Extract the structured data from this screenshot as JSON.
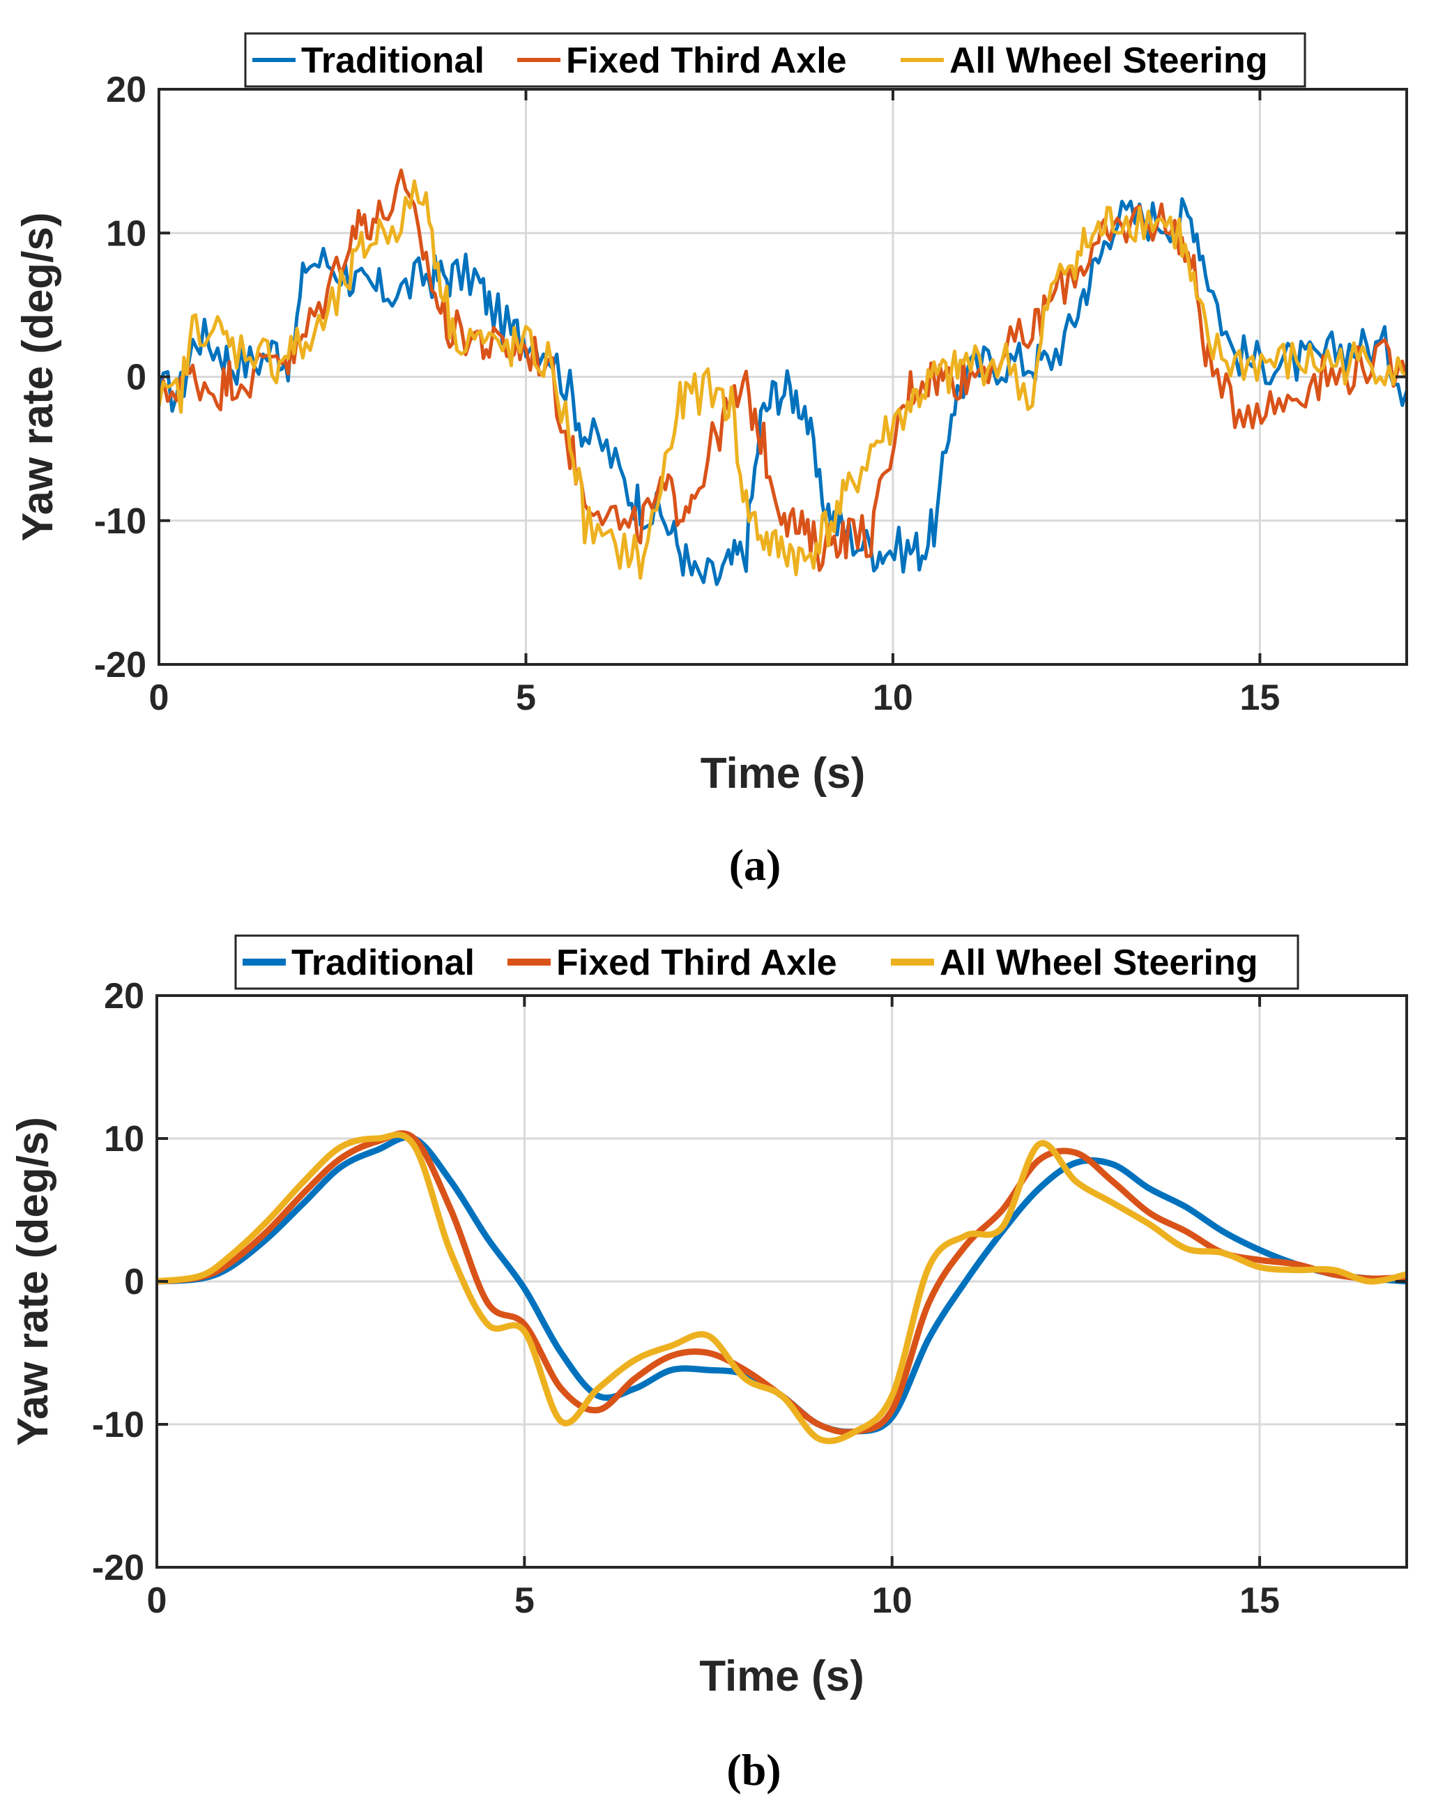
{
  "chart_data": [
    {
      "type": "line",
      "panel": "a",
      "caption": "(a)",
      "xlabel": "Time (s)",
      "ylabel": "Yaw rate (deg/s)",
      "xlim": [
        0,
        17
      ],
      "ylim": [
        -20,
        20
      ],
      "xticks": [
        0,
        5,
        10,
        15
      ],
      "yticks": [
        -20,
        -10,
        0,
        10,
        20
      ],
      "xtick_labels": [
        "0",
        "5",
        "10",
        "15"
      ],
      "ytick_labels": [
        "-20",
        "-10",
        "0",
        "10",
        "20"
      ],
      "grid": true,
      "legend_position": "top, above plot",
      "noisy": true,
      "series": [
        {
          "name": "Traditional",
          "color": "#0072BD",
          "x": [
            0,
            0.3,
            0.5,
            0.8,
            1.0,
            1.3,
            1.6,
            1.8,
            2.0,
            2.3,
            2.6,
            2.8,
            3.0,
            3.3,
            3.6,
            3.8,
            4.0,
            4.3,
            4.5,
            4.8,
            5.0,
            5.3,
            5.6,
            5.8,
            6.1,
            6.4,
            6.6,
            6.9,
            7.1,
            7.3,
            7.6,
            7.8,
            8.0,
            8.2,
            8.4,
            8.6,
            8.8,
            9.0,
            9.2,
            9.4,
            9.7,
            9.9,
            10.2,
            10.4,
            10.6,
            10.8,
            11.0,
            11.3,
            11.6,
            11.9,
            12.1,
            12.4,
            12.6,
            12.8,
            13.0,
            13.3,
            13.6,
            13.9,
            14.1,
            14.3,
            14.6,
            14.9,
            15.2,
            15.5,
            15.8,
            16.1,
            16.4,
            16.7,
            17.0
          ],
          "y": [
            -1,
            -1,
            3,
            2,
            1,
            1,
            2,
            1,
            8,
            8,
            7,
            6,
            6,
            6,
            7,
            7,
            7,
            7,
            5,
            3,
            3,
            2,
            -1,
            -4,
            -5,
            -8,
            -9,
            -10,
            -12,
            -14,
            -14,
            -13,
            -12,
            -3,
            -1,
            -1,
            -2,
            -8,
            -10,
            -11,
            -12,
            -12,
            -12,
            -12,
            -10,
            -2,
            0,
            1,
            1,
            1,
            1,
            3,
            6,
            8,
            11,
            11,
            11,
            11,
            11,
            7,
            2,
            1,
            1,
            1,
            1,
            2,
            2,
            2,
            -1
          ]
        },
        {
          "name": "Fixed Third Axle",
          "color": "#D95319",
          "x": [
            0,
            0.3,
            0.5,
            0.8,
            1.0,
            1.3,
            1.6,
            1.8,
            2.0,
            2.3,
            2.6,
            2.8,
            3.0,
            3.3,
            3.6,
            3.8,
            4.0,
            4.3,
            4.5,
            4.8,
            5.0,
            5.3,
            5.6,
            5.8,
            6.1,
            6.4,
            6.6,
            6.9,
            7.1,
            7.3,
            7.6,
            7.8,
            8.0,
            8.2,
            8.4,
            8.6,
            8.8,
            9.0,
            9.2,
            9.4,
            9.7,
            9.9,
            10.2,
            10.4,
            10.6,
            10.8,
            11.0,
            11.3,
            11.6,
            11.9,
            12.1,
            12.4,
            12.6,
            12.8,
            13.0,
            13.3,
            13.6,
            13.9,
            14.1,
            14.3,
            14.6,
            14.9,
            15.2,
            15.5,
            15.8,
            16.1,
            16.4,
            16.7,
            17.0
          ],
          "y": [
            -2,
            0,
            0,
            -1,
            0,
            0,
            2,
            1,
            3,
            6,
            10,
            11,
            11,
            13,
            9,
            5,
            3,
            3,
            2,
            2,
            2,
            1,
            -5,
            -8,
            -9,
            -11,
            -10,
            -8,
            -9,
            -8,
            -4,
            -2,
            -1,
            -4,
            -8,
            -10,
            -11,
            -12,
            -11,
            -11,
            -11,
            -7,
            -1,
            0,
            0,
            0,
            0,
            1,
            2,
            3,
            5,
            7,
            8,
            9,
            10,
            11,
            11,
            10,
            7,
            1,
            -2,
            -2,
            -2,
            -1,
            0,
            0,
            1,
            1,
            0
          ]
        },
        {
          "name": "All Wheel Steering",
          "color": "#EDB120",
          "x": [
            0,
            0.3,
            0.5,
            0.8,
            1.0,
            1.3,
            1.6,
            1.8,
            2.0,
            2.3,
            2.6,
            2.8,
            3.0,
            3.3,
            3.6,
            3.8,
            4.0,
            4.3,
            4.5,
            4.8,
            5.0,
            5.3,
            5.6,
            5.8,
            6.1,
            6.4,
            6.6,
            6.9,
            7.1,
            7.3,
            7.6,
            7.8,
            8.0,
            8.2,
            8.4,
            8.6,
            8.8,
            9.0,
            9.2,
            9.4,
            9.7,
            9.9,
            10.2,
            10.4,
            10.6,
            10.8,
            11.0,
            11.3,
            11.6,
            11.9,
            12.1,
            12.4,
            12.6,
            12.8,
            13.0,
            13.3,
            13.6,
            13.9,
            14.1,
            14.3,
            14.6,
            14.9,
            15.2,
            15.5,
            15.8,
            16.1,
            16.4,
            16.7,
            17.0
          ],
          "y": [
            -2,
            -1,
            4,
            3,
            2,
            2,
            1,
            2,
            2,
            4,
            7,
            9,
            10,
            11,
            13,
            8,
            3,
            3,
            2,
            2,
            2,
            1,
            -4,
            -10,
            -12,
            -12,
            -13,
            -6,
            -2,
            -1,
            -1,
            -2,
            -9,
            -11,
            -12,
            -12,
            -13,
            -11,
            -10,
            -8,
            -5,
            -4,
            -2,
            -1,
            0,
            0,
            1,
            1,
            1,
            -2,
            5,
            8,
            9,
            10,
            11,
            11,
            11,
            10,
            6,
            2,
            1,
            1,
            1,
            1,
            1,
            1,
            1,
            1,
            0
          ]
        }
      ]
    },
    {
      "type": "line",
      "panel": "b",
      "caption": "(b)",
      "xlabel": "Time (s)",
      "ylabel": "Yaw rate (deg/s)",
      "xlim": [
        0,
        17
      ],
      "ylim": [
        -20,
        20
      ],
      "xticks": [
        0,
        5,
        10,
        15
      ],
      "yticks": [
        -20,
        -10,
        0,
        10,
        20
      ],
      "xtick_labels": [
        "0",
        "5",
        "10",
        "15"
      ],
      "ytick_labels": [
        "-20",
        "-10",
        "0",
        "10",
        "20"
      ],
      "grid": true,
      "legend_position": "top, above plot",
      "noisy": false,
      "series": [
        {
          "name": "Traditional",
          "color": "#0072BD",
          "x": [
            0,
            0.6,
            1.0,
            1.5,
            2.0,
            2.5,
            3.0,
            3.5,
            4.0,
            4.5,
            5.0,
            5.5,
            6.0,
            6.5,
            7.0,
            7.5,
            8.0,
            8.5,
            9.0,
            9.5,
            10.0,
            10.5,
            11.0,
            11.5,
            12.0,
            12.5,
            13.0,
            13.5,
            14.0,
            14.5,
            15.0,
            15.5,
            16.0,
            16.5,
            17.0
          ],
          "y": [
            0,
            0.2,
            1,
            3,
            5.5,
            8,
            9.2,
            10,
            7,
            3,
            -0.5,
            -5,
            -8,
            -7.5,
            -6.2,
            -6.2,
            -6.5,
            -8,
            -10,
            -10.5,
            -9.5,
            -4,
            0,
            3.5,
            6.5,
            8.3,
            8.2,
            6.5,
            5.2,
            3.5,
            2.2,
            1.2,
            0.5,
            0.2,
            0
          ]
        },
        {
          "name": "Fixed Third Axle",
          "color": "#D95319",
          "x": [
            0,
            0.6,
            1.0,
            1.5,
            2.0,
            2.5,
            3.0,
            3.5,
            4.0,
            4.5,
            5.0,
            5.5,
            6.0,
            6.5,
            7.0,
            7.5,
            8.0,
            8.5,
            9.0,
            9.5,
            10.0,
            10.5,
            11.0,
            11.5,
            12.0,
            12.5,
            13.0,
            13.5,
            14.0,
            14.5,
            15.0,
            15.5,
            16.0,
            16.5,
            17.0
          ],
          "y": [
            0,
            0.3,
            1.3,
            3.5,
            6.2,
            8.6,
            9.8,
            10,
            5,
            -1.5,
            -3,
            -7.5,
            -9,
            -6.8,
            -5.2,
            -5,
            -6.2,
            -8,
            -10,
            -10.5,
            -9,
            -1.5,
            2.5,
            5,
            8.5,
            9,
            7,
            4.8,
            3.5,
            2,
            1.5,
            1.2,
            0.5,
            0.2,
            0.3
          ]
        },
        {
          "name": "All Wheel Steering",
          "color": "#EDB120",
          "x": [
            0,
            0.6,
            1.0,
            1.5,
            2.0,
            2.5,
            3.0,
            3.5,
            4.0,
            4.5,
            5.0,
            5.5,
            6.0,
            6.5,
            7.0,
            7.5,
            8.0,
            8.5,
            9.0,
            9.5,
            10.0,
            10.5,
            11.0,
            11.5,
            12.0,
            12.5,
            13.0,
            13.5,
            14.0,
            14.5,
            15.0,
            15.5,
            16.0,
            16.5,
            17.0
          ],
          "y": [
            0,
            0.4,
            1.8,
            4.2,
            7,
            9.4,
            10,
            9.5,
            2,
            -3,
            -3.5,
            -9.8,
            -7.5,
            -5.5,
            -4.5,
            -3.8,
            -6.8,
            -8,
            -11,
            -10.5,
            -8,
            1,
            3.2,
            3.8,
            9.6,
            7,
            5.5,
            4,
            2.3,
            2,
            1,
            0.8,
            0.8,
            0,
            0.5
          ]
        }
      ]
    }
  ]
}
